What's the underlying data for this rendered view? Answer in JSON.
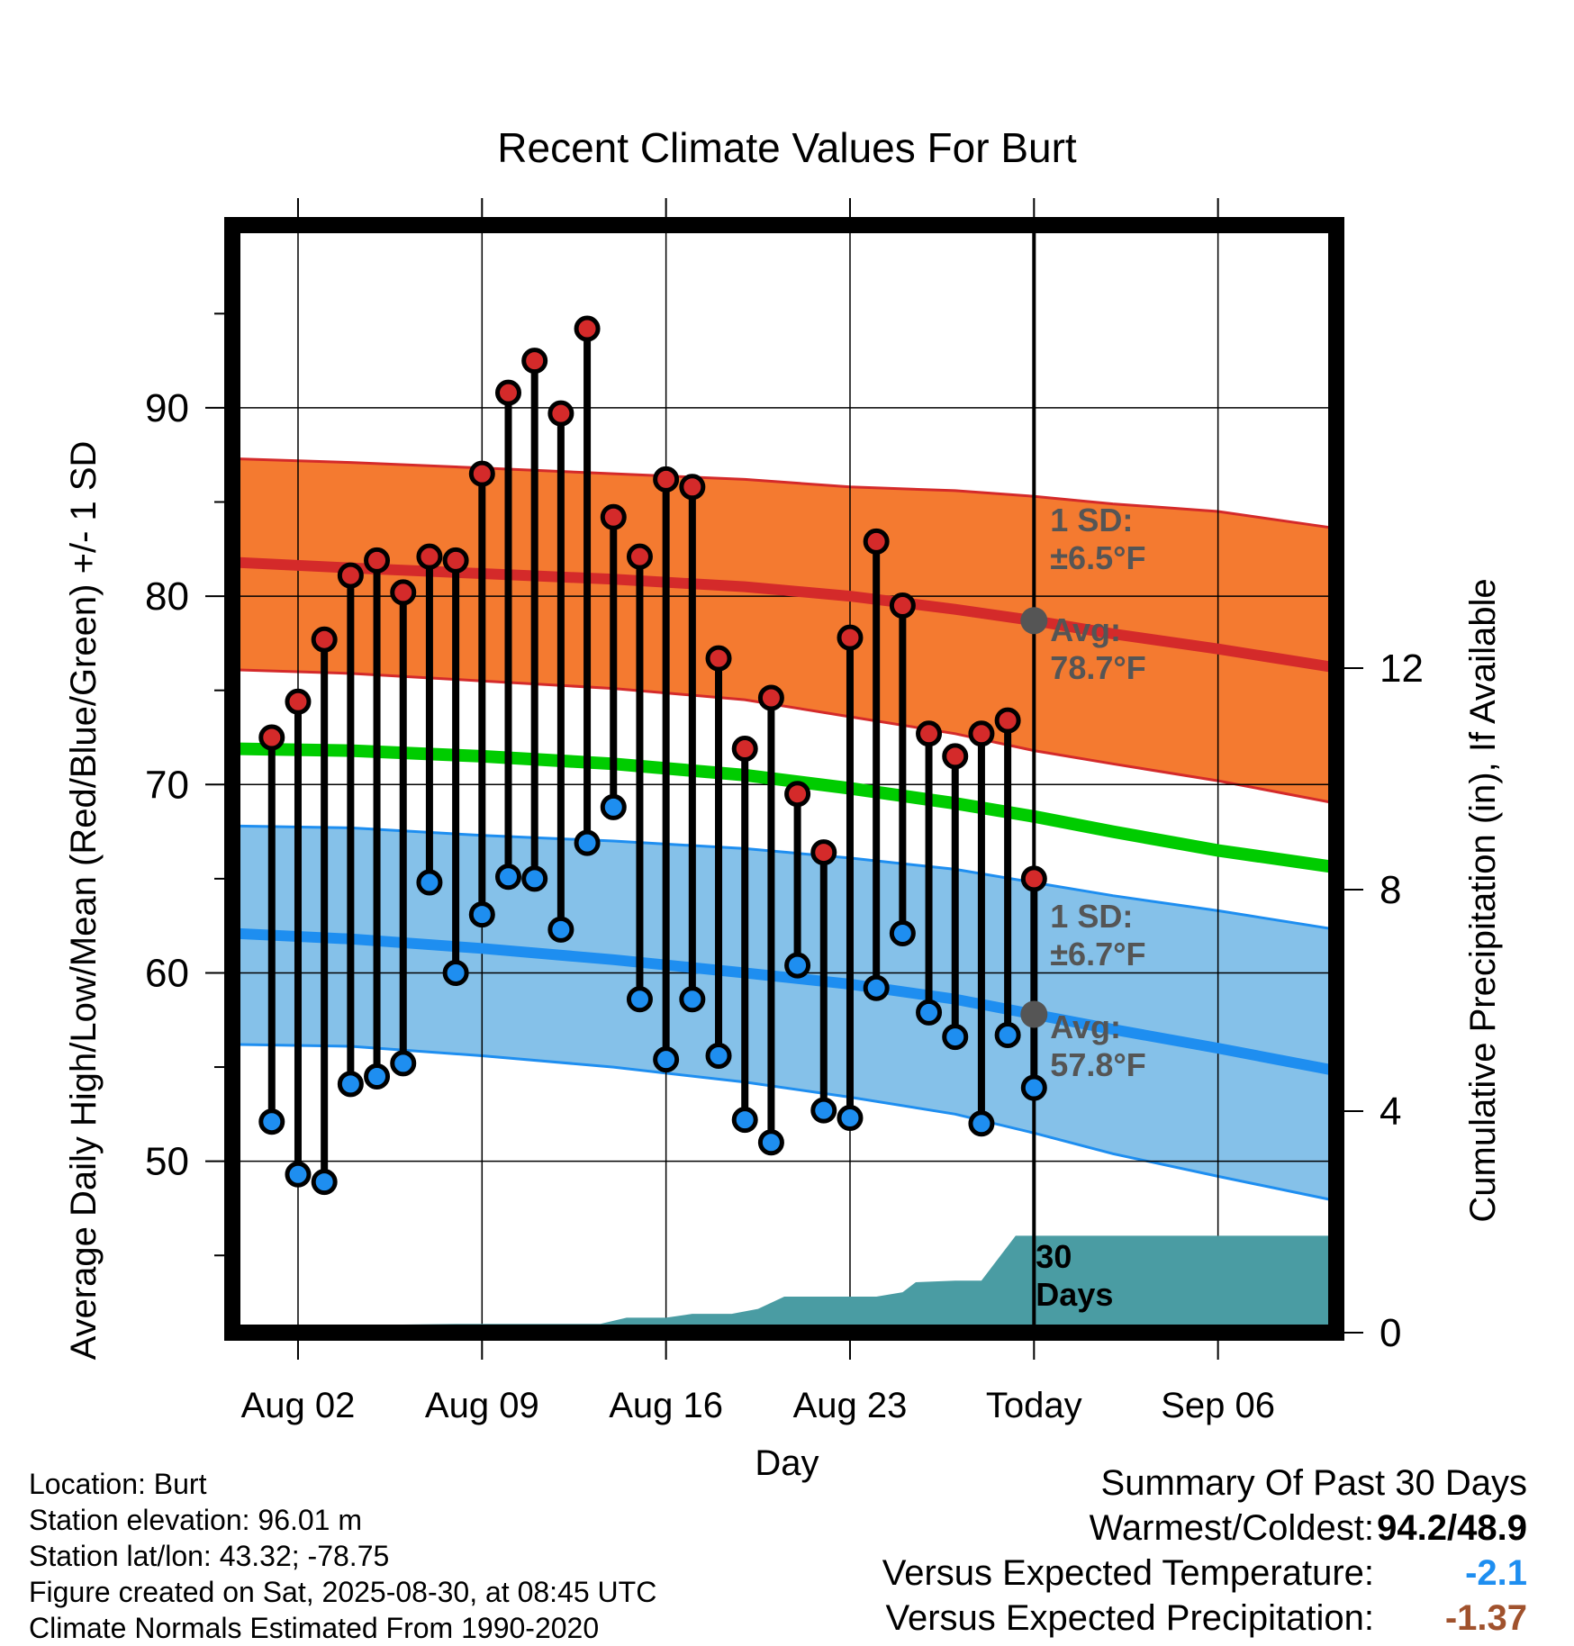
{
  "chart_data": {
    "type": "line",
    "title": "Recent Climate Values For Burt",
    "xlabel": "Day",
    "ylabel": "Average Daily High/Low/Mean (Red/Blue/Green) +/- 1 SD",
    "y2label": "Cumulative Precipitation (in), If Available",
    "ylim": [
      40.9,
      99.7
    ],
    "y2lim": [
      0,
      20
    ],
    "xlim": [
      -1.5,
      40.5
    ],
    "xticks": [
      {
        "x": 1,
        "label": "Aug 02"
      },
      {
        "x": 8,
        "label": "Aug 09"
      },
      {
        "x": 15,
        "label": "Aug 16"
      },
      {
        "x": 22,
        "label": "Aug 23"
      },
      {
        "x": 29,
        "label": "Today"
      },
      {
        "x": 36,
        "label": "Sep 06"
      }
    ],
    "yticks": [
      50,
      60,
      70,
      80,
      90
    ],
    "y2ticks": [
      0,
      4,
      8,
      12
    ],
    "today_x": 29,
    "normals": {
      "x": [
        -1.5,
        3,
        8,
        13,
        18,
        22,
        26,
        29,
        32,
        36,
        40.5
      ],
      "high_avg": [
        81.8,
        81.5,
        81.2,
        80.9,
        80.5,
        80.0,
        79.3,
        78.7,
        78.0,
        77.2,
        76.2
      ],
      "high_upper": [
        87.3,
        87.1,
        86.8,
        86.5,
        86.2,
        85.8,
        85.6,
        85.3,
        84.9,
        84.5,
        83.6
      ],
      "high_lower": [
        76.1,
        75.9,
        75.5,
        75.1,
        74.5,
        73.6,
        72.7,
        71.8,
        71.1,
        70.2,
        69.0
      ],
      "mean": [
        71.9,
        71.8,
        71.5,
        71.1,
        70.5,
        69.8,
        69.0,
        68.3,
        67.5,
        66.5,
        65.6
      ],
      "low_avg": [
        62.1,
        61.8,
        61.3,
        60.7,
        60.0,
        59.4,
        58.6,
        57.8,
        57.0,
        56.0,
        54.8
      ],
      "low_upper": [
        67.8,
        67.7,
        67.3,
        67.0,
        66.6,
        66.1,
        65.5,
        64.8,
        64.1,
        63.3,
        62.3
      ],
      "low_lower": [
        56.2,
        56.1,
        55.6,
        55.0,
        54.2,
        53.4,
        52.5,
        51.5,
        50.4,
        49.2,
        47.9
      ]
    },
    "series": [
      {
        "name": "High",
        "color": "#d42a2a",
        "x": [
          0,
          1,
          2,
          3,
          4,
          5,
          6,
          7,
          8,
          9,
          10,
          11,
          12,
          13,
          14,
          15,
          16,
          17,
          18,
          19,
          20,
          21,
          22,
          23,
          24,
          25,
          26,
          27,
          28
        ],
        "values": [
          72.5,
          74.4,
          77.7,
          81.1,
          81.9,
          80.2,
          82.1,
          81.9,
          86.5,
          90.8,
          92.5,
          89.7,
          94.2,
          84.2,
          82.1,
          86.2,
          85.8,
          76.7,
          71.9,
          74.6,
          69.5,
          66.4,
          77.8,
          82.9,
          79.5,
          72.7,
          71.5,
          72.7,
          73.4
        ]
      },
      {
        "name": "Low",
        "color": "#1e8ef0",
        "x": [
          0,
          1,
          2,
          3,
          4,
          5,
          6,
          7,
          8,
          9,
          10,
          11,
          12,
          13,
          14,
          15,
          16,
          17,
          18,
          19,
          20,
          21,
          22,
          23,
          24,
          25,
          26,
          27,
          28
        ],
        "values": [
          52.1,
          49.3,
          48.9,
          54.1,
          54.5,
          55.2,
          64.8,
          60.0,
          63.1,
          65.1,
          65.0,
          62.3,
          66.9,
          68.8,
          58.6,
          55.4,
          58.6,
          55.6,
          52.2,
          51.0,
          60.4,
          52.7,
          52.3,
          59.2,
          62.1,
          57.9,
          56.6,
          52.0,
          56.7
        ]
      },
      {
        "name": "Day 29 High",
        "color": "#d42a2a",
        "x": [
          29
        ],
        "values": [
          65.0
        ]
      },
      {
        "name": "Day 29 Low",
        "color": "#1e8ef0",
        "x": [
          29
        ],
        "values": [
          53.9
        ]
      }
    ],
    "precip": {
      "x": [
        -1.5,
        -0.5,
        0.3,
        4,
        7,
        12.5,
        13.5,
        15,
        16,
        17.5,
        18.5,
        19.5,
        23,
        24,
        24.5,
        26,
        27,
        28.3,
        29,
        40.5
      ],
      "values": [
        0.0,
        0.0,
        0.14,
        0.14,
        0.16,
        0.16,
        0.27,
        0.27,
        0.34,
        0.34,
        0.43,
        0.65,
        0.65,
        0.73,
        0.91,
        0.94,
        0.94,
        1.75,
        1.75,
        1.75
      ]
    },
    "precip_label": "30 Days",
    "annotations": {
      "high_sd": "1 SD:",
      "high_sd_val": "±6.5°F",
      "high_avg_label": "Avg:",
      "high_avg_val": "78.7°F",
      "low_sd": "1 SD:",
      "low_sd_val": "±6.7°F",
      "low_avg_label": "Avg:",
      "low_avg_val": "57.8°F"
    },
    "colors": {
      "high_band": "#f47a30",
      "high_line": "#d42a2a",
      "mean_line": "#00cc00",
      "low_band": "#85c1e9",
      "low_line": "#1e8ef0",
      "precip": "#4a9ca3",
      "annotation": "#555555"
    }
  },
  "footer": {
    "location": "Location: Burt",
    "elevation": "Station elevation: 96.01 m",
    "latlon": "Station lat/lon: 43.32; -78.75",
    "created": "Figure created on Sat, 2025-08-30, at 08:45 UTC",
    "normals": "Climate Normals Estimated From 1990-2020"
  },
  "summary": {
    "title": "Summary Of Past 30 Days",
    "warm_cold_label": "Warmest/Coldest:",
    "warm_cold_value": "94.2/48.9",
    "temp_label": "Versus Expected Temperature:",
    "temp_value": "-2.1",
    "temp_color": "#1e8ef0",
    "precip_label": "Versus Expected Precipitation:",
    "precip_value": "-1.37",
    "precip_color": "#a0522d"
  }
}
